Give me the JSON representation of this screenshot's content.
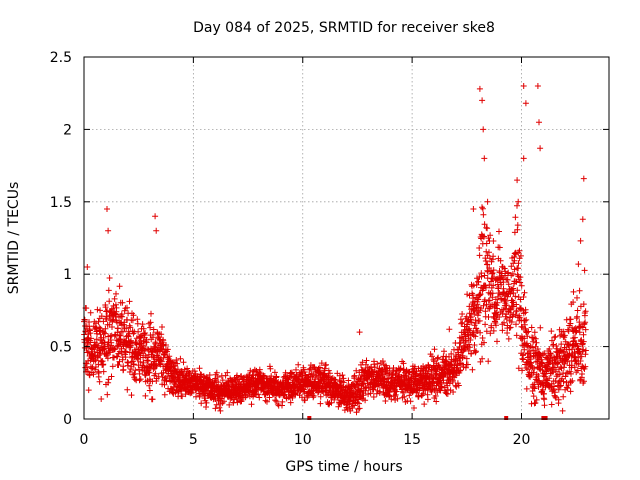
{
  "chart_data": {
    "type": "scatter",
    "title": "Day 084 of 2025, SRMTID for receiver ske8",
    "xlabel": "GPS time / hours",
    "ylabel": "SRMTID / TECUs",
    "xlim": [
      0,
      24
    ],
    "ylim": [
      0,
      2.5
    ],
    "x_ticks": [
      0,
      5,
      10,
      15,
      20
    ],
    "x_tick_labels": [
      "0",
      "5",
      "10",
      "15",
      "20"
    ],
    "y_ticks": [
      0,
      0.5,
      1,
      1.5,
      2,
      2.5
    ],
    "y_tick_labels": [
      "0",
      "0.5",
      "1",
      "1.5",
      "2",
      "2.5"
    ],
    "grid": true,
    "marker": "plus",
    "color": "#e00000",
    "envelope_hours": [
      0,
      0.5,
      1,
      1.5,
      2,
      2.5,
      3,
      3.5,
      4,
      4.5,
      5,
      6,
      7,
      8,
      9,
      10,
      11,
      12,
      12.5,
      13,
      14,
      15,
      16,
      16.5,
      17,
      17.5,
      18,
      18.3,
      18.8,
      19.2,
      19.5,
      19.8,
      20,
      20.3,
      20.5,
      21,
      21.5,
      22,
      22.5,
      23
    ],
    "envelope_mean": [
      0.6,
      0.45,
      0.55,
      0.6,
      0.5,
      0.45,
      0.45,
      0.45,
      0.3,
      0.25,
      0.25,
      0.2,
      0.2,
      0.25,
      0.2,
      0.25,
      0.25,
      0.15,
      0.2,
      0.3,
      0.25,
      0.25,
      0.3,
      0.3,
      0.35,
      0.6,
      0.8,
      1.0,
      0.9,
      0.85,
      0.8,
      1.0,
      0.7,
      0.4,
      0.4,
      0.3,
      0.35,
      0.4,
      0.5,
      0.6
    ],
    "envelope_spread": [
      0.3,
      0.25,
      0.35,
      0.3,
      0.25,
      0.2,
      0.25,
      0.2,
      0.15,
      0.1,
      0.1,
      0.1,
      0.08,
      0.1,
      0.1,
      0.1,
      0.12,
      0.1,
      0.15,
      0.12,
      0.12,
      0.12,
      0.15,
      0.15,
      0.15,
      0.25,
      0.35,
      0.6,
      0.35,
      0.3,
      0.3,
      0.5,
      0.35,
      0.25,
      0.25,
      0.2,
      0.25,
      0.3,
      0.3,
      0.4
    ],
    "points_per_hour": 140,
    "outliers": [
      [
        1.05,
        1.45
      ],
      [
        1.1,
        1.3
      ],
      [
        3.25,
        1.4
      ],
      [
        3.3,
        1.3
      ],
      [
        0.15,
        1.05
      ],
      [
        17.8,
        1.45
      ],
      [
        18.1,
        2.28
      ],
      [
        18.2,
        2.2
      ],
      [
        18.25,
        2.0
      ],
      [
        18.3,
        1.8
      ],
      [
        18.45,
        1.5
      ],
      [
        19.8,
        1.65
      ],
      [
        19.85,
        1.5
      ],
      [
        20.1,
        2.3
      ],
      [
        20.2,
        2.18
      ],
      [
        20.1,
        1.8
      ],
      [
        20.75,
        2.3
      ],
      [
        20.85,
        1.87
      ],
      [
        20.8,
        2.05
      ],
      [
        22.85,
        1.66
      ],
      [
        22.8,
        1.38
      ],
      [
        22.7,
        1.23
      ],
      [
        22.6,
        1.07
      ],
      [
        12.6,
        0.6
      ],
      [
        16.7,
        0.62
      ]
    ],
    "zero_points": [
      [
        10.3,
        0
      ],
      [
        19.3,
        0
      ],
      [
        21.0,
        0
      ],
      [
        21.1,
        0
      ]
    ]
  }
}
